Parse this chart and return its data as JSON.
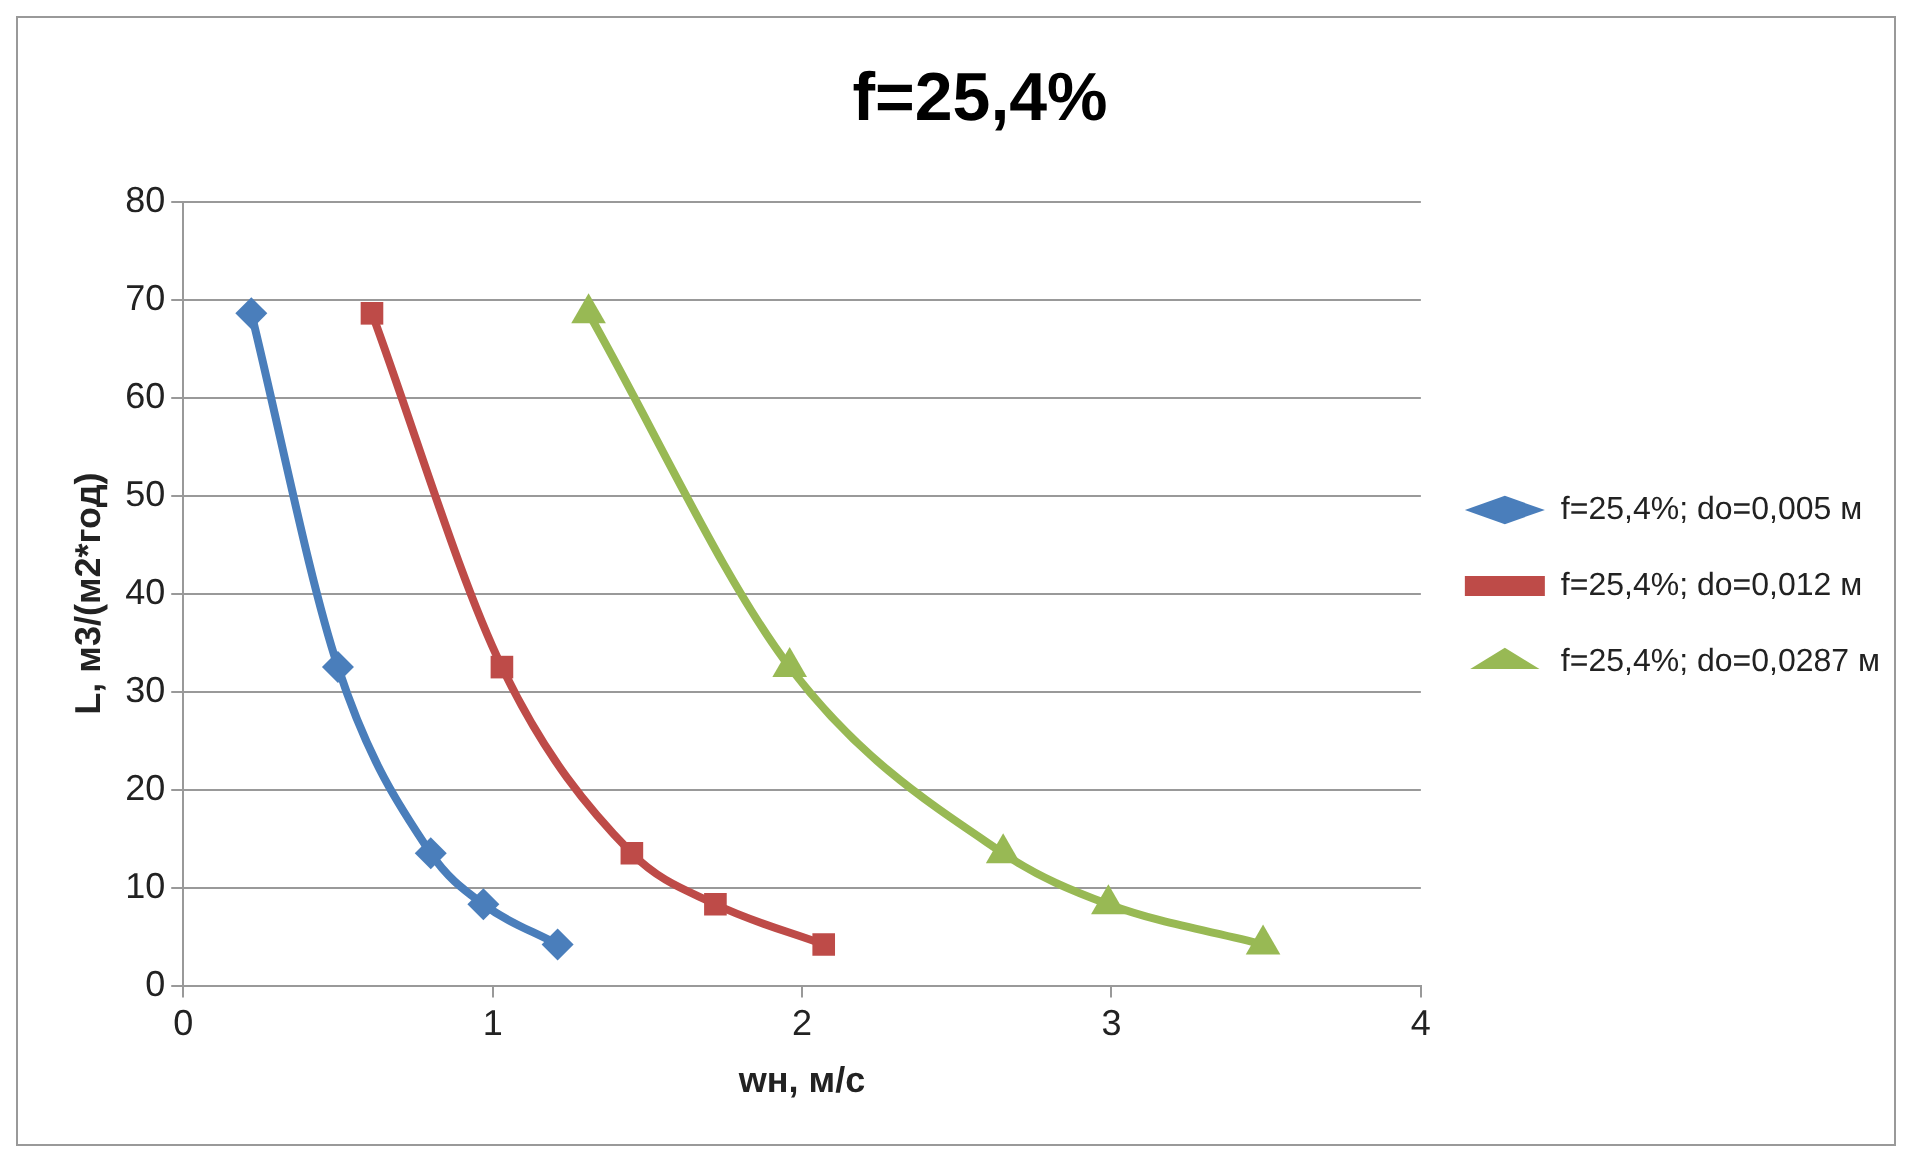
{
  "chart_data": {
    "type": "line",
    "title": "f=25,4%",
    "xlabel": "wн, м/с",
    "ylabel": "L, м3/(м2*год)",
    "series": [
      {
        "name": "f=25,4%; do=0,005 м",
        "color": "#4a7ebb",
        "marker": "diamond",
        "x": [
          0.22,
          0.5,
          0.8,
          0.97,
          1.21
        ],
        "values": [
          68.6,
          32.5,
          13.5,
          8.3,
          4.2
        ]
      },
      {
        "name": "f=25,4%; do=0,012 м",
        "color": "#be4b48",
        "marker": "square",
        "x": [
          0.61,
          1.03,
          1.45,
          1.72,
          2.07
        ],
        "values": [
          68.6,
          32.5,
          13.5,
          8.3,
          4.2
        ]
      },
      {
        "name": "f=25,4%; do=0,0287 м",
        "color": "#98b954",
        "marker": "triangle",
        "x": [
          1.31,
          1.96,
          2.65,
          2.99,
          3.49
        ],
        "values": [
          68.6,
          32.5,
          13.5,
          8.3,
          4.2
        ]
      }
    ],
    "xlim": [
      0,
      4
    ],
    "xticks": [
      0,
      1,
      2,
      3,
      4
    ],
    "ylim": [
      0,
      80
    ],
    "yticks": [
      0,
      10,
      20,
      30,
      40,
      50,
      60,
      70,
      80
    ],
    "grid": "y",
    "legend": "right",
    "line_style": "solid"
  }
}
